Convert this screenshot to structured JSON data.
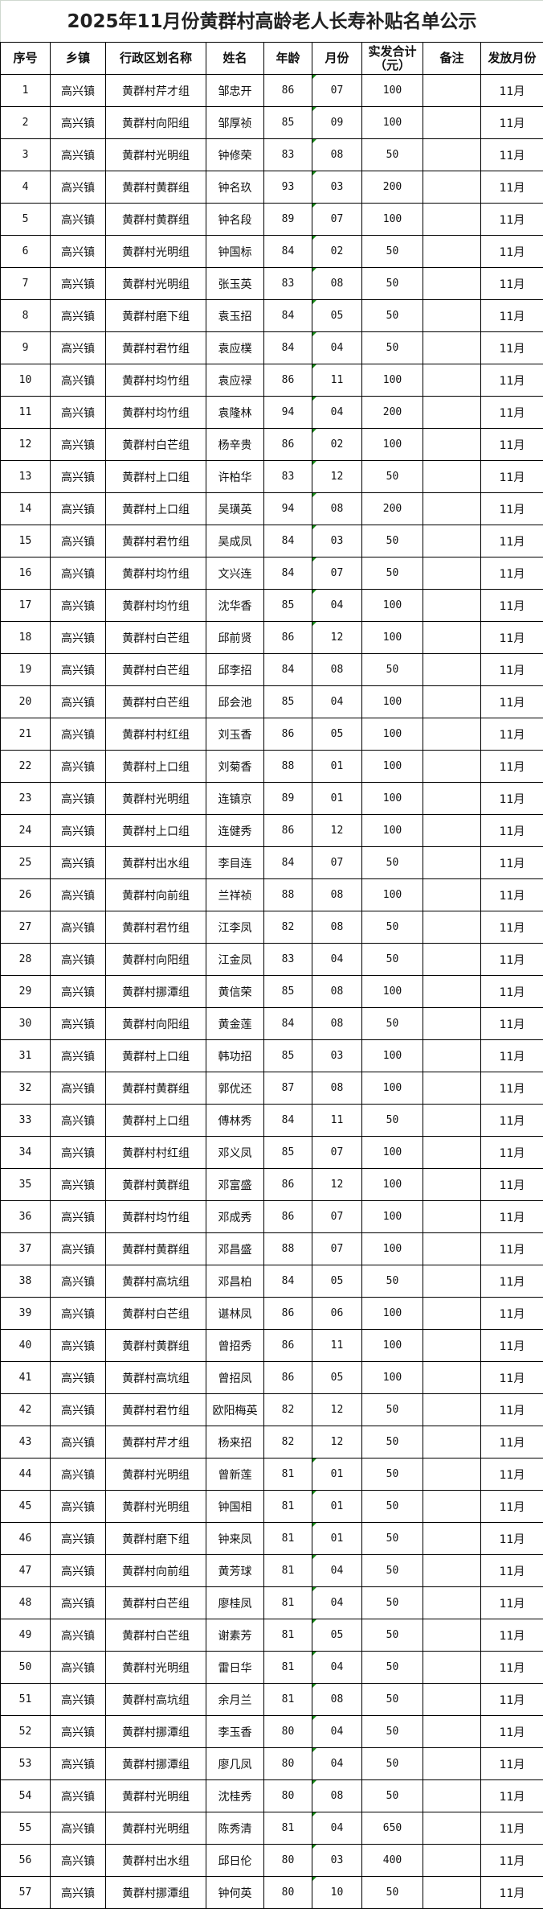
{
  "title": "2025年11月份黄群村高龄老人长寿补贴名单公示",
  "headers": [
    "序号",
    "乡镇",
    "行政区划名称",
    "姓名",
    "年龄",
    "月份",
    "实发合计（元）",
    "备注",
    "发放月份"
  ],
  "rows": [
    [
      "1",
      "高兴镇",
      "黄群村芹才组",
      "邹忠开",
      "86",
      "07",
      "100",
      "",
      "11月"
    ],
    [
      "2",
      "高兴镇",
      "黄群村向阳组",
      "邹厚祯",
      "85",
      "09",
      "100",
      "",
      "11月"
    ],
    [
      "3",
      "高兴镇",
      "黄群村光明组",
      "钟修荣",
      "83",
      "08",
      "50",
      "",
      "11月"
    ],
    [
      "4",
      "高兴镇",
      "黄群村黄群组",
      "钟名玖",
      "93",
      "03",
      "200",
      "",
      "11月"
    ],
    [
      "5",
      "高兴镇",
      "黄群村黄群组",
      "钟名段",
      "89",
      "07",
      "100",
      "",
      "11月"
    ],
    [
      "6",
      "高兴镇",
      "黄群村光明组",
      "钟国标",
      "84",
      "02",
      "50",
      "",
      "11月"
    ],
    [
      "7",
      "高兴镇",
      "黄群村光明组",
      "张玉英",
      "83",
      "08",
      "50",
      "",
      "11月"
    ],
    [
      "8",
      "高兴镇",
      "黄群村磨下组",
      "袁玉招",
      "84",
      "05",
      "50",
      "",
      "11月"
    ],
    [
      "9",
      "高兴镇",
      "黄群村君竹组",
      "袁应樸",
      "84",
      "04",
      "50",
      "",
      "11月"
    ],
    [
      "10",
      "高兴镇",
      "黄群村均竹组",
      "袁应禄",
      "86",
      "11",
      "100",
      "",
      "11月"
    ],
    [
      "11",
      "高兴镇",
      "黄群村均竹组",
      "袁隆林",
      "94",
      "04",
      "200",
      "",
      "11月"
    ],
    [
      "12",
      "高兴镇",
      "黄群村白芒组",
      "杨辛贵",
      "86",
      "02",
      "100",
      "",
      "11月"
    ],
    [
      "13",
      "高兴镇",
      "黄群村上口组",
      "许柏华",
      "83",
      "12",
      "50",
      "",
      "11月"
    ],
    [
      "14",
      "高兴镇",
      "黄群村上口组",
      "吴璜英",
      "94",
      "08",
      "200",
      "",
      "11月"
    ],
    [
      "15",
      "高兴镇",
      "黄群村君竹组",
      "吴成凤",
      "84",
      "03",
      "50",
      "",
      "11月"
    ],
    [
      "16",
      "高兴镇",
      "黄群村均竹组",
      "文兴连",
      "84",
      "07",
      "50",
      "",
      "11月"
    ],
    [
      "17",
      "高兴镇",
      "黄群村均竹组",
      "沈华香",
      "85",
      "04",
      "100",
      "",
      "11月"
    ],
    [
      "18",
      "高兴镇",
      "黄群村白芒组",
      "邱前贤",
      "86",
      "12",
      "100",
      "",
      "11月"
    ],
    [
      "19",
      "高兴镇",
      "黄群村白芒组",
      "邱李招",
      "84",
      "08",
      "50",
      "",
      "11月"
    ],
    [
      "20",
      "高兴镇",
      "黄群村白芒组",
      "邱会池",
      "85",
      "04",
      "100",
      "",
      "11月"
    ],
    [
      "21",
      "高兴镇",
      "黄群村村红组",
      "刘玉香",
      "86",
      "05",
      "100",
      "",
      "11月"
    ],
    [
      "22",
      "高兴镇",
      "黄群村上口组",
      "刘菊香",
      "88",
      "01",
      "100",
      "",
      "11月"
    ],
    [
      "23",
      "高兴镇",
      "黄群村光明组",
      "连镇京",
      "89",
      "01",
      "100",
      "",
      "11月"
    ],
    [
      "24",
      "高兴镇",
      "黄群村上口组",
      "连健秀",
      "86",
      "12",
      "100",
      "",
      "11月"
    ],
    [
      "25",
      "高兴镇",
      "黄群村出水组",
      "李目连",
      "84",
      "07",
      "50",
      "",
      "11月"
    ],
    [
      "26",
      "高兴镇",
      "黄群村向前组",
      "兰祥祯",
      "88",
      "08",
      "100",
      "",
      "11月"
    ],
    [
      "27",
      "高兴镇",
      "黄群村君竹组",
      "江李凤",
      "82",
      "08",
      "50",
      "",
      "11月"
    ],
    [
      "28",
      "高兴镇",
      "黄群村向阳组",
      "江金凤",
      "83",
      "04",
      "50",
      "",
      "11月"
    ],
    [
      "29",
      "高兴镇",
      "黄群村挪潭组",
      "黄信荣",
      "85",
      "08",
      "100",
      "",
      "11月"
    ],
    [
      "30",
      "高兴镇",
      "黄群村向阳组",
      "黄金莲",
      "84",
      "08",
      "50",
      "",
      "11月"
    ],
    [
      "31",
      "高兴镇",
      "黄群村上口组",
      "韩功招",
      "85",
      "03",
      "100",
      "",
      "11月"
    ],
    [
      "32",
      "高兴镇",
      "黄群村黄群组",
      "郭优还",
      "87",
      "08",
      "100",
      "",
      "11月"
    ],
    [
      "33",
      "高兴镇",
      "黄群村上口组",
      "傅林秀",
      "84",
      "11",
      "50",
      "",
      "11月"
    ],
    [
      "34",
      "高兴镇",
      "黄群村村红组",
      "邓义凤",
      "85",
      "07",
      "100",
      "",
      "11月"
    ],
    [
      "35",
      "高兴镇",
      "黄群村黄群组",
      "邓富盛",
      "86",
      "12",
      "100",
      "",
      "11月"
    ],
    [
      "36",
      "高兴镇",
      "黄群村均竹组",
      "邓成秀",
      "86",
      "07",
      "100",
      "",
      "11月"
    ],
    [
      "37",
      "高兴镇",
      "黄群村黄群组",
      "邓昌盛",
      "88",
      "07",
      "100",
      "",
      "11月"
    ],
    [
      "38",
      "高兴镇",
      "黄群村高坑组",
      "邓昌柏",
      "84",
      "05",
      "50",
      "",
      "11月"
    ],
    [
      "39",
      "高兴镇",
      "黄群村白芒组",
      "谌林凤",
      "86",
      "06",
      "100",
      "",
      "11月"
    ],
    [
      "40",
      "高兴镇",
      "黄群村黄群组",
      "曾招秀",
      "86",
      "11",
      "100",
      "",
      "11月"
    ],
    [
      "41",
      "高兴镇",
      "黄群村高坑组",
      "曾招凤",
      "86",
      "05",
      "100",
      "",
      "11月"
    ],
    [
      "42",
      "高兴镇",
      "黄群村君竹组",
      "欧阳梅英",
      "82",
      "12",
      "50",
      "",
      "11月"
    ],
    [
      "43",
      "高兴镇",
      "黄群村芹才组",
      "杨来招",
      "82",
      "12",
      "50",
      "",
      "11月"
    ],
    [
      "44",
      "高兴镇",
      "黄群村光明组",
      "曾新莲",
      "81",
      "01",
      "50",
      "",
      "11月"
    ],
    [
      "45",
      "高兴镇",
      "黄群村光明组",
      "钟国相",
      "81",
      "01",
      "50",
      "",
      "11月"
    ],
    [
      "46",
      "高兴镇",
      "黄群村磨下组",
      "钟来凤",
      "81",
      "01",
      "50",
      "",
      "11月"
    ],
    [
      "47",
      "高兴镇",
      "黄群村向前组",
      "黄芳球",
      "81",
      "04",
      "50",
      "",
      "11月"
    ],
    [
      "48",
      "高兴镇",
      "黄群村白芒组",
      "廖桂凤",
      "81",
      "04",
      "50",
      "",
      "11月"
    ],
    [
      "49",
      "高兴镇",
      "黄群村白芒组",
      "谢素芳",
      "81",
      "05",
      "50",
      "",
      "11月"
    ],
    [
      "50",
      "高兴镇",
      "黄群村光明组",
      "雷日华",
      "81",
      "04",
      "50",
      "",
      "11月"
    ],
    [
      "51",
      "高兴镇",
      "黄群村高坑组",
      "余月兰",
      "81",
      "08",
      "50",
      "",
      "11月"
    ],
    [
      "52",
      "高兴镇",
      "黄群村挪潭组",
      "李玉香",
      "80",
      "04",
      "50",
      "",
      "11月"
    ],
    [
      "53",
      "高兴镇",
      "黄群村挪潭组",
      "廖几凤",
      "80",
      "04",
      "50",
      "",
      "11月"
    ],
    [
      "54",
      "高兴镇",
      "黄群村光明组",
      "沈桂秀",
      "80",
      "08",
      "50",
      "",
      "11月"
    ],
    [
      "55",
      "高兴镇",
      "黄群村光明组",
      "陈秀清",
      "81",
      "04",
      "650",
      "",
      "11月"
    ],
    [
      "56",
      "高兴镇",
      "黄群村出水组",
      "邱日伦",
      "80",
      "03",
      "400",
      "",
      "11月"
    ],
    [
      "57",
      "高兴镇",
      "黄群村挪潭组",
      "钟何英",
      "80",
      "10",
      "50",
      "",
      "11月"
    ]
  ],
  "text_flag_color": "#1a8a1a"
}
